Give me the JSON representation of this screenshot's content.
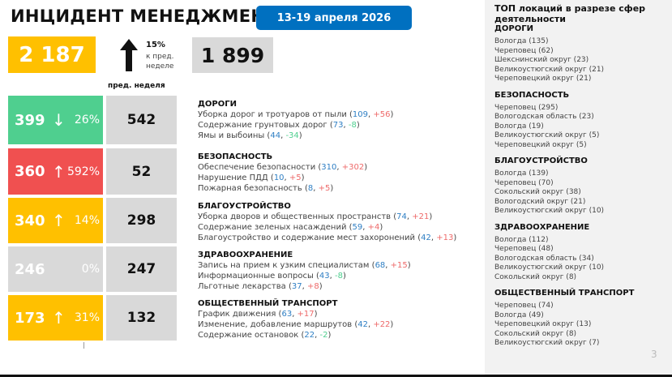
{
  "header": {
    "title": "ИНЦИДЕНТ МЕНЕДЖМЕНТ",
    "date_range": "13-19 апреля 2026"
  },
  "summary": {
    "total": "2 187",
    "trend": "up",
    "change_pct": "15%",
    "change_label": "к пред. неделе",
    "prev_total": "1 899",
    "prev_label": "пред. неделя"
  },
  "colors": {
    "green": "#4fcf8f",
    "red": "#f05050",
    "yellow": "#ffc000",
    "gray": "#d9d9d9",
    "blue": "#0070c0"
  },
  "categories": [
    {
      "name": "ДОРОГИ",
      "current": "399",
      "trend": "down",
      "pct": "26%",
      "prev": "542",
      "color": "#4fcf8f",
      "items": [
        {
          "name": "Уборка дорог и тротуаров от пыли",
          "count": "109",
          "delta": "+56"
        },
        {
          "name": "Содержание грунтовых дорог",
          "count": "73",
          "delta": "-8"
        },
        {
          "name": "Ямы и выбоины",
          "count": "44",
          "delta": "-34"
        }
      ]
    },
    {
      "name": "БЕЗОПАСНОСТЬ",
      "current": "360",
      "trend": "up",
      "pct": "592%",
      "prev": "52",
      "color": "#f05050",
      "items": [
        {
          "name": "Обеспечение безопасности",
          "count": "310",
          "delta": "+302"
        },
        {
          "name": "Нарушение ПДД",
          "count": "10",
          "delta": "+5"
        },
        {
          "name": "Пожарная безопасность",
          "count": "8",
          "delta": "+5"
        }
      ]
    },
    {
      "name": "БЛАГОУСТРОЙСТВО",
      "current": "340",
      "trend": "up",
      "pct": "14%",
      "prev": "298",
      "color": "#ffc000",
      "items": [
        {
          "name": "Уборка дворов и общественных пространств",
          "count": "74",
          "delta": "+21"
        },
        {
          "name": "Содержание зеленых насаждений",
          "count": "59",
          "delta": "+4"
        },
        {
          "name": "Благоустройство и содержание мест захоронений",
          "count": "42",
          "delta": "+13"
        }
      ]
    },
    {
      "name": "ЗДРАВООХРАНЕНИЕ",
      "current": "246",
      "trend": "none",
      "pct": "0%",
      "prev": "247",
      "color": "#d9d9d9",
      "items": [
        {
          "name": "Запись на прием к узким специалистам",
          "count": "68",
          "delta": "+15"
        },
        {
          "name": "Информационные вопросы",
          "count": "43",
          "delta": "-8"
        },
        {
          "name": "Льготные лекарства",
          "count": "37",
          "delta": "+8"
        }
      ]
    },
    {
      "name": "ОБЩЕСТВЕННЫЙ ТРАНСПОРТ",
      "current": "173",
      "trend": "up",
      "pct": "31%",
      "prev": "132",
      "color": "#ffc000",
      "items": [
        {
          "name": "График движения",
          "count": "63",
          "delta": "+17"
        },
        {
          "name": "Изменение, добавление маршрутов",
          "count": "42",
          "delta": "+22"
        },
        {
          "name": "Содержание остановок",
          "count": "22",
          "delta": "-2"
        }
      ]
    }
  ],
  "top_locations": {
    "title": "ТОП локаций в разрезе сфер деятельности",
    "sections": [
      {
        "name": "ДОРОГИ",
        "items": [
          "Вологда (135)",
          "Череповец (62)",
          "Шекснинский округ (23)",
          "Великоустюгский округ (21)",
          "Череповецкий округ (21)"
        ]
      },
      {
        "name": "БЕЗОПАСНОСТЬ",
        "items": [
          "Череповец (295)",
          "Вологодская область (23)",
          "Вологда (19)",
          "Великоустюгский округ (5)",
          "Череповецкий округ (5)"
        ]
      },
      {
        "name": "БЛАГОУСТРОЙСТВО",
        "items": [
          "Вологда (139)",
          "Череповец (70)",
          "Сокольский округ (38)",
          "Вологодский округ (21)",
          "Великоустюгский округ (10)"
        ]
      },
      {
        "name": "ЗДРАВООХРАНЕНИЕ",
        "items": [
          "Вологда (112)",
          "Череповец (48)",
          "Вологодская область (34)",
          "Великоустюгский округ (10)",
          "Сокольский округ (8)"
        ]
      },
      {
        "name": "ОБЩЕСТВЕННЫЙ ТРАНСПОРТ",
        "items": [
          "Череповец (74)",
          "Вологда (49)",
          "Череповецкий округ (13)",
          "Сокольский округ (8)",
          "Великоустюгский округ (7)"
        ]
      }
    ]
  },
  "page_number": "3"
}
